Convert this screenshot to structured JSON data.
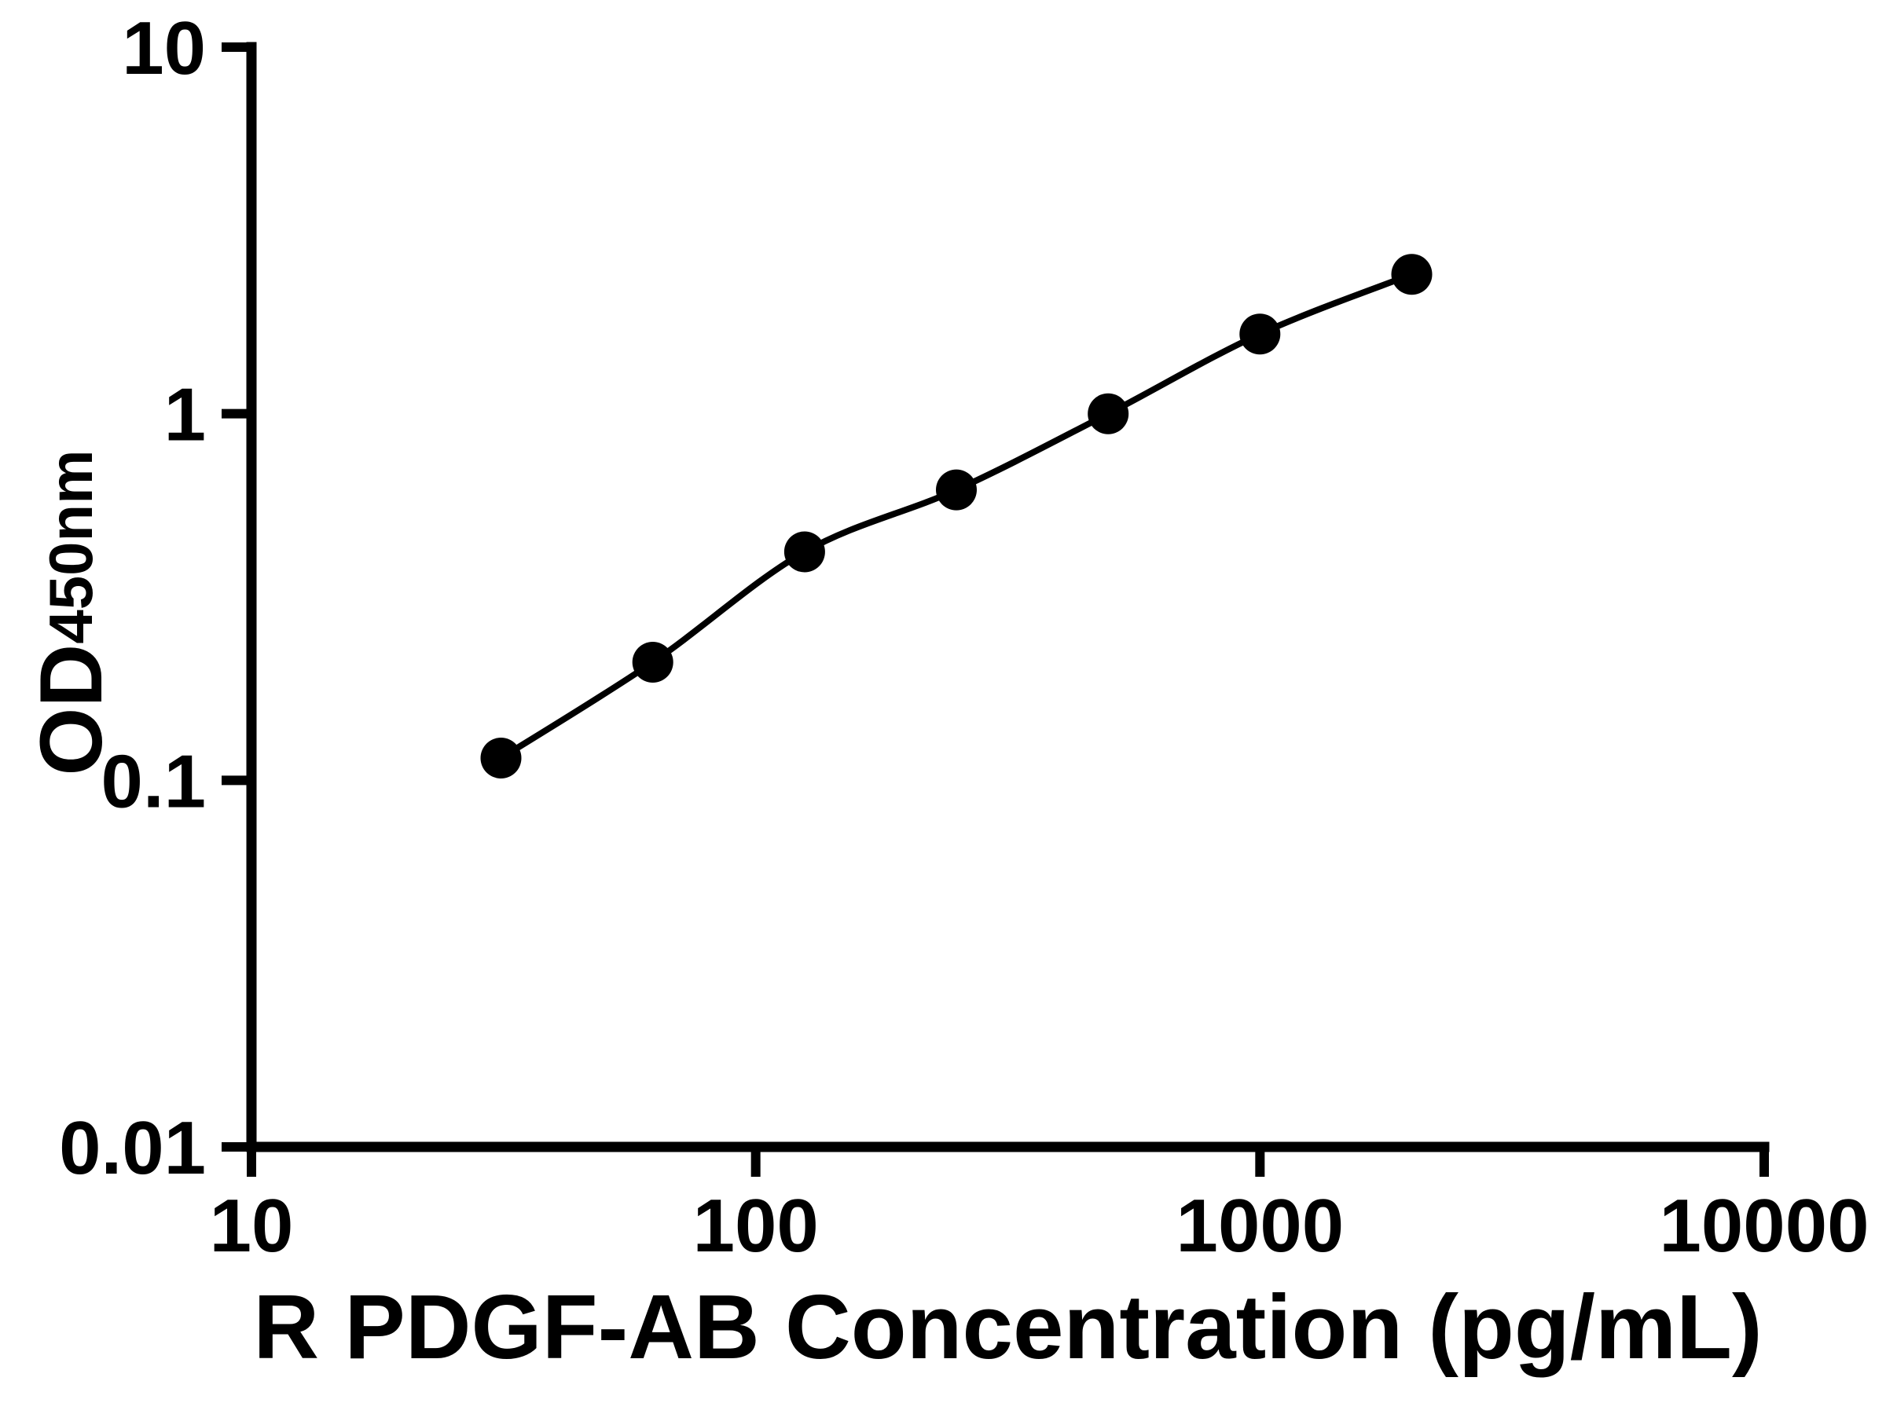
{
  "page": {
    "background": "#ffffff"
  },
  "chart_data": {
    "type": "scatter",
    "title": "",
    "xlabel": "R PDGF-AB Concentration (pg/mL)",
    "ylabel_main": "OD",
    "ylabel_sub": "450nm",
    "x_scale": "log",
    "y_scale": "log",
    "xlim": [
      10,
      10000
    ],
    "ylim": [
      0.01,
      10
    ],
    "x": [
      31.25,
      62.5,
      125,
      250,
      500,
      1000,
      2000
    ],
    "y": [
      0.115,
      0.21,
      0.42,
      0.62,
      1.0,
      1.65,
      2.4
    ],
    "xticks": {
      "values": [
        10,
        100,
        1000,
        10000
      ],
      "labels": [
        "10",
        "100",
        "1000",
        "10000"
      ]
    },
    "yticks": {
      "values": [
        0.01,
        0.1,
        1,
        10
      ],
      "labels": [
        "0.01",
        "0.1",
        "1",
        "10"
      ]
    },
    "grid": false,
    "legend": false,
    "marker": "circle",
    "curve": "smooth-fit-through-points",
    "colors": {
      "axis": "#000000",
      "marker": "#000000",
      "curve": "#000000",
      "background": "#ffffff"
    }
  }
}
